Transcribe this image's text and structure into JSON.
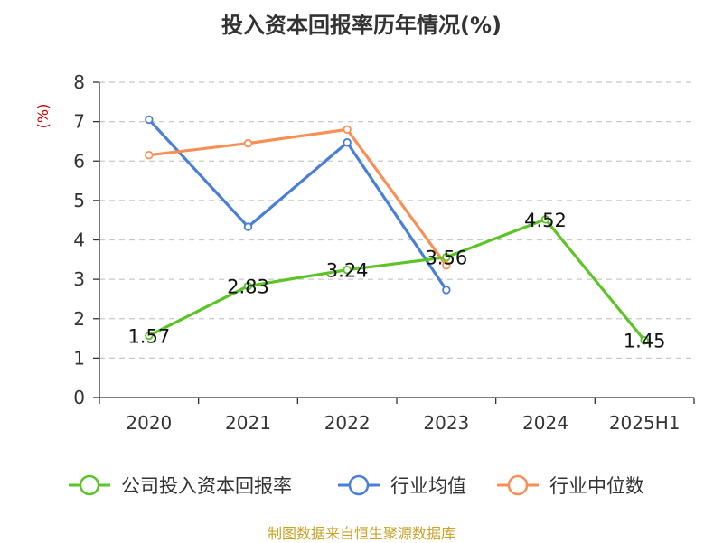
{
  "chart_data": {
    "type": "line",
    "title": "投入资本回报率历年情况(%)",
    "ylabel": "(%)",
    "xlabel": "",
    "categories": [
      "2020",
      "2021",
      "2022",
      "2023",
      "2024",
      "2025H1"
    ],
    "ylim": [
      0,
      8
    ],
    "yticks": [
      0,
      1,
      2,
      3,
      4,
      5,
      6,
      7,
      8
    ],
    "grid": "horizontal-dashed",
    "legend_position": "bottom",
    "series": [
      {
        "name": "公司投入资本回报率",
        "color": "#5cc424",
        "values": [
          1.57,
          2.83,
          3.24,
          3.56,
          4.52,
          1.45
        ],
        "labels": [
          "1.57",
          "2.83",
          "3.24",
          "3.56",
          "4.52",
          "1.45"
        ]
      },
      {
        "name": "行业均值",
        "color": "#4a7fd8",
        "values": [
          7.05,
          4.33,
          6.47,
          2.73,
          null,
          null
        ]
      },
      {
        "name": "行业中位数",
        "color": "#f79057",
        "values": [
          6.15,
          6.45,
          6.8,
          3.35,
          null,
          null
        ]
      }
    ]
  },
  "source_note": "制图数据来自恒生聚源数据库"
}
